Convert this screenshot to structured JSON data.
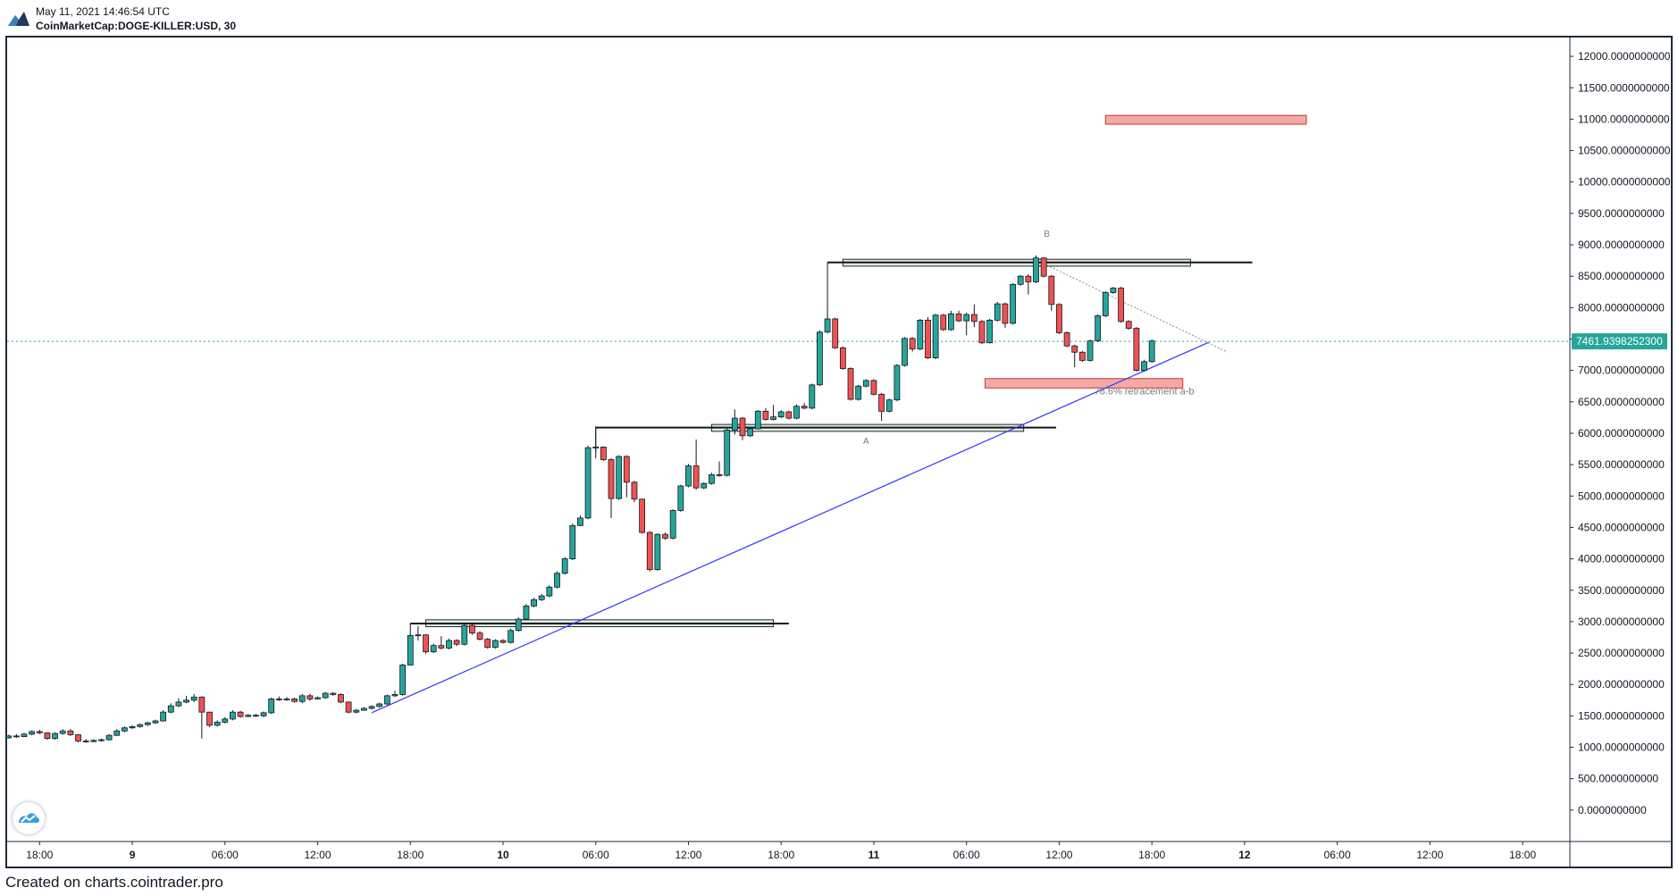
{
  "header": {
    "datetime": "May 11, 2021 14:46:54 UTC",
    "symbol": "CoinMarketCap:DOGE-KILLER:USD, 30"
  },
  "footer": {
    "text": "Created on charts.cointrader.pro"
  },
  "colors": {
    "up": "#26a69a",
    "down": "#ef5350",
    "trendline": "#3333ff",
    "zone_green": "#dfe9d6",
    "zone_red": "#f4a9a8",
    "price_label_bg": "#26a69a",
    "axis_text": "#131722"
  },
  "icons": {
    "logo": "cointrader-logo-icon",
    "watermark": "cointrader-watermark-icon"
  },
  "chart_data": {
    "type": "candlestick",
    "price_axis": {
      "ticks": [
        "12000.0000000000",
        "11500.0000000000",
        "11000.0000000000",
        "10500.0000000000",
        "10000.0000000000",
        "9500.0000000000",
        "9000.0000000000",
        "8500.0000000000",
        "8000.0000000000",
        "7500.0000000000",
        "7000.0000000000",
        "6500.0000000000",
        "6000.0000000000",
        "5500.0000000000",
        "5000.0000000000",
        "4500.0000000000",
        "4000.0000000000",
        "3500.0000000000",
        "3000.0000000000",
        "2500.0000000000",
        "2000.0000000000",
        "1500.0000000000",
        "1000.0000000000",
        "500.0000000000",
        "0.0000000000"
      ],
      "range": [
        -500,
        12300
      ]
    },
    "time_axis": {
      "ticks": [
        "18:00",
        "9",
        "06:00",
        "12:00",
        "18:00",
        "10",
        "06:00",
        "12:00",
        "18:00",
        "11",
        "06:00",
        "12:00",
        "18:00",
        "12",
        "06:00",
        "12:00",
        "18:00"
      ],
      "ticks_hours": [
        18,
        24,
        30,
        36,
        42,
        48,
        54,
        60,
        66,
        72,
        78,
        84,
        90,
        96,
        102,
        108,
        114
      ],
      "bold_ticks": [
        "9",
        "10",
        "11",
        "12"
      ],
      "range_hours": [
        15.9,
        117.0
      ],
      "origin_note": "hours since May 8, 00:00 UTC"
    },
    "last_price": {
      "value": 7461.93982523,
      "label": "7461.9398252300"
    },
    "candles": [
      [
        16.0,
        1150,
        1180,
        1200,
        1140
      ],
      [
        16.5,
        1180,
        1170,
        1210,
        1150
      ],
      [
        17.0,
        1170,
        1210,
        1230,
        1160
      ],
      [
        17.5,
        1210,
        1250,
        1270,
        1190
      ],
      [
        18.0,
        1250,
        1230,
        1280,
        1210
      ],
      [
        18.5,
        1230,
        1140,
        1240,
        1120
      ],
      [
        19.0,
        1140,
        1220,
        1240,
        1120
      ],
      [
        19.5,
        1220,
        1260,
        1290,
        1200
      ],
      [
        20.0,
        1260,
        1200,
        1290,
        1180
      ],
      [
        20.5,
        1200,
        1100,
        1210,
        1080
      ],
      [
        21.0,
        1100,
        1090,
        1130,
        1070
      ],
      [
        21.5,
        1090,
        1110,
        1130,
        1080
      ],
      [
        22.0,
        1110,
        1120,
        1140,
        1090
      ],
      [
        22.5,
        1120,
        1190,
        1210,
        1110
      ],
      [
        23.0,
        1190,
        1260,
        1290,
        1180
      ],
      [
        23.5,
        1260,
        1310,
        1330,
        1240
      ],
      [
        24.0,
        1310,
        1330,
        1350,
        1290
      ],
      [
        24.5,
        1330,
        1360,
        1380,
        1310
      ],
      [
        25.0,
        1360,
        1390,
        1410,
        1340
      ],
      [
        25.5,
        1390,
        1420,
        1440,
        1370
      ],
      [
        26.0,
        1420,
        1560,
        1590,
        1410
      ],
      [
        26.5,
        1560,
        1660,
        1700,
        1540
      ],
      [
        27.0,
        1660,
        1720,
        1780,
        1640
      ],
      [
        27.5,
        1720,
        1750,
        1820,
        1700
      ],
      [
        28.0,
        1750,
        1800,
        1850,
        1720
      ],
      [
        28.5,
        1800,
        1560,
        1810,
        1140
      ],
      [
        29.0,
        1560,
        1350,
        1560,
        1320
      ],
      [
        29.5,
        1350,
        1400,
        1430,
        1330
      ],
      [
        30.0,
        1400,
        1450,
        1480,
        1380
      ],
      [
        30.5,
        1450,
        1560,
        1590,
        1430
      ],
      [
        31.0,
        1560,
        1490,
        1580,
        1470
      ],
      [
        31.5,
        1490,
        1510,
        1530,
        1480
      ],
      [
        32.0,
        1510,
        1500,
        1530,
        1480
      ],
      [
        32.5,
        1500,
        1550,
        1570,
        1480
      ],
      [
        33.0,
        1550,
        1770,
        1790,
        1530
      ],
      [
        33.5,
        1770,
        1760,
        1810,
        1740
      ],
      [
        34.0,
        1760,
        1770,
        1800,
        1740
      ],
      [
        34.5,
        1770,
        1730,
        1790,
        1710
      ],
      [
        35.0,
        1730,
        1820,
        1850,
        1700
      ],
      [
        35.5,
        1820,
        1770,
        1850,
        1740
      ],
      [
        36.0,
        1770,
        1790,
        1810,
        1760
      ],
      [
        36.5,
        1790,
        1860,
        1880,
        1770
      ],
      [
        37.0,
        1860,
        1840,
        1880,
        1820
      ],
      [
        37.5,
        1840,
        1720,
        1860,
        1700
      ],
      [
        38.0,
        1720,
        1560,
        1730,
        1540
      ],
      [
        38.5,
        1560,
        1590,
        1610,
        1540
      ],
      [
        39.0,
        1590,
        1620,
        1640,
        1580
      ],
      [
        39.5,
        1620,
        1650,
        1670,
        1600
      ],
      [
        40.0,
        1650,
        1690,
        1710,
        1630
      ],
      [
        40.5,
        1690,
        1820,
        1840,
        1670
      ],
      [
        41.0,
        1820,
        1840,
        1900,
        1800
      ],
      [
        41.5,
        1840,
        2310,
        2330,
        1820
      ],
      [
        42.0,
        2310,
        2780,
        2810,
        2300
      ],
      [
        42.5,
        2780,
        2790,
        2930,
        2700
      ],
      [
        43.0,
        2790,
        2520,
        2800,
        2490
      ],
      [
        43.5,
        2520,
        2620,
        2650,
        2500
      ],
      [
        44.0,
        2620,
        2580,
        2770,
        2560
      ],
      [
        44.5,
        2580,
        2700,
        2730,
        2560
      ],
      [
        45.0,
        2700,
        2640,
        2720,
        2610
      ],
      [
        45.5,
        2640,
        2940,
        2970,
        2620
      ],
      [
        46.0,
        2940,
        2820,
        2970,
        2790
      ],
      [
        46.5,
        2820,
        2720,
        2850,
        2700
      ],
      [
        47.0,
        2720,
        2590,
        2740,
        2570
      ],
      [
        47.5,
        2590,
        2700,
        2720,
        2570
      ],
      [
        48.0,
        2700,
        2670,
        2720,
        2650
      ],
      [
        48.5,
        2670,
        2860,
        2890,
        2650
      ],
      [
        49.0,
        2860,
        3040,
        3070,
        2840
      ],
      [
        49.5,
        3040,
        3250,
        3280,
        3020
      ],
      [
        50.0,
        3250,
        3350,
        3380,
        3230
      ],
      [
        50.5,
        3350,
        3410,
        3440,
        3330
      ],
      [
        51.0,
        3410,
        3550,
        3580,
        3390
      ],
      [
        51.5,
        3550,
        3770,
        3800,
        3530
      ],
      [
        52.0,
        3770,
        4000,
        4030,
        3750
      ],
      [
        52.5,
        4000,
        4530,
        4560,
        3980
      ],
      [
        53.0,
        4530,
        4650,
        4690,
        4520
      ],
      [
        53.5,
        4650,
        5770,
        5800,
        4630
      ],
      [
        54.0,
        5770,
        5780,
        6110,
        5600
      ],
      [
        54.5,
        5780,
        5580,
        5790,
        5560
      ],
      [
        55.0,
        5580,
        4960,
        5600,
        4650
      ],
      [
        55.5,
        4960,
        5630,
        5650,
        4940
      ],
      [
        56.0,
        5630,
        5220,
        5650,
        4980
      ],
      [
        56.5,
        5220,
        4950,
        5240,
        4900
      ],
      [
        57.0,
        4950,
        4420,
        4960,
        4400
      ],
      [
        57.5,
        4420,
        3830,
        4440,
        3800
      ],
      [
        58.0,
        3830,
        4390,
        4410,
        3810
      ],
      [
        58.5,
        4390,
        4330,
        4420,
        4300
      ],
      [
        59.0,
        4330,
        4770,
        4790,
        4310
      ],
      [
        59.5,
        4770,
        5160,
        5180,
        4750
      ],
      [
        60.0,
        5160,
        5480,
        5510,
        5140
      ],
      [
        60.5,
        5480,
        5130,
        5900,
        5100
      ],
      [
        61.0,
        5130,
        5200,
        5220,
        5110
      ],
      [
        61.5,
        5200,
        5340,
        5370,
        5180
      ],
      [
        62.0,
        5340,
        5330,
        5550,
        5310
      ],
      [
        62.5,
        5330,
        6050,
        6080,
        5310
      ],
      [
        63.0,
        6050,
        6240,
        6380,
        5980
      ],
      [
        63.5,
        6240,
        5960,
        6260,
        5890
      ],
      [
        64.0,
        5960,
        6070,
        6090,
        5940
      ],
      [
        64.5,
        6070,
        6350,
        6370,
        6060
      ],
      [
        65.0,
        6350,
        6220,
        6400,
        6200
      ],
      [
        65.5,
        6220,
        6260,
        6450,
        6200
      ],
      [
        66.0,
        6260,
        6340,
        6370,
        6240
      ],
      [
        66.5,
        6340,
        6240,
        6360,
        6220
      ],
      [
        67.0,
        6240,
        6430,
        6460,
        6220
      ],
      [
        67.5,
        6430,
        6400,
        6480,
        6380
      ],
      [
        68.0,
        6400,
        6770,
        6790,
        6380
      ],
      [
        68.5,
        6770,
        7610,
        7640,
        6750
      ],
      [
        69.0,
        7610,
        7820,
        7860,
        7590
      ],
      [
        69.5,
        7820,
        7360,
        7840,
        7340
      ],
      [
        70.0,
        7360,
        7030,
        7380,
        7010
      ],
      [
        70.5,
        7030,
        6540,
        7050,
        6520
      ],
      [
        71.0,
        6540,
        6750,
        6770,
        6520
      ],
      [
        71.5,
        6750,
        6840,
        6860,
        6730
      ],
      [
        72.0,
        6840,
        6620,
        6860,
        6600
      ],
      [
        72.5,
        6620,
        6350,
        6640,
        6200
      ],
      [
        73.0,
        6350,
        6530,
        6550,
        6330
      ],
      [
        73.5,
        6530,
        7080,
        7100,
        6510
      ],
      [
        74.0,
        7080,
        7510,
        7530,
        7060
      ],
      [
        74.5,
        7510,
        7340,
        7530,
        7300
      ],
      [
        75.0,
        7340,
        7800,
        7820,
        7320
      ],
      [
        75.5,
        7800,
        7200,
        7850,
        7180
      ],
      [
        76.0,
        7200,
        7880,
        7900,
        7180
      ],
      [
        76.5,
        7880,
        7650,
        7900,
        7630
      ],
      [
        77.0,
        7650,
        7900,
        7950,
        7630
      ],
      [
        77.5,
        7900,
        7790,
        7950,
        7770
      ],
      [
        78.0,
        7790,
        7890,
        7920,
        7560
      ],
      [
        78.5,
        7890,
        7780,
        8050,
        7690
      ],
      [
        79.0,
        7780,
        7440,
        7800,
        7420
      ],
      [
        79.5,
        7440,
        7800,
        7820,
        7430
      ],
      [
        80.0,
        7800,
        8060,
        8090,
        7780
      ],
      [
        80.5,
        8060,
        7750,
        8080,
        7680
      ],
      [
        81.0,
        7750,
        8370,
        8390,
        7730
      ],
      [
        81.5,
        8370,
        8500,
        8520,
        8350
      ],
      [
        82.0,
        8500,
        8410,
        8530,
        8210
      ],
      [
        82.5,
        8410,
        8790,
        8830,
        8390
      ],
      [
        83.0,
        8790,
        8500,
        8800,
        8480
      ],
      [
        83.5,
        8500,
        8050,
        8520,
        7950
      ],
      [
        84.0,
        8050,
        7600,
        8070,
        7580
      ],
      [
        84.5,
        7600,
        7390,
        7620,
        7370
      ],
      [
        85.0,
        7390,
        7290,
        7410,
        7050
      ],
      [
        85.5,
        7290,
        7160,
        7310,
        7140
      ],
      [
        86.0,
        7160,
        7470,
        7490,
        7140
      ],
      [
        86.5,
        7470,
        7870,
        7890,
        7450
      ],
      [
        87.0,
        7870,
        8240,
        8260,
        7850
      ],
      [
        87.5,
        8240,
        8310,
        8330,
        8220
      ],
      [
        88.0,
        8310,
        7780,
        8330,
        7760
      ],
      [
        88.5,
        7780,
        7670,
        7800,
        7650
      ],
      [
        89.0,
        7670,
        7000,
        7690,
        6980
      ],
      [
        89.5,
        7000,
        7140,
        7170,
        6980
      ],
      [
        90.0,
        7140,
        7470,
        7490,
        7120
      ]
    ],
    "annotations": {
      "labels": [
        {
          "text": "B",
          "x_hours": 83.2,
          "price": 9130
        },
        {
          "text": "A",
          "x_hours": 71.5,
          "price": 5830
        },
        {
          "text": "78.6% retracement a-b",
          "x_hours": 89.5,
          "price": 6620
        }
      ],
      "horizontal_lines": [
        {
          "from_hours": 42.0,
          "to_hours": 66.5,
          "price": 2970,
          "left_tick_to": 2800
        },
        {
          "from_hours": 54.0,
          "to_hours": 83.8,
          "price": 6090,
          "left_tick_to": 5700
        },
        {
          "from_hours": 69.0,
          "to_hours": 96.5,
          "price": 8720,
          "left_tick_to": 7850
        }
      ],
      "zones": [
        {
          "kind": "support-green",
          "from_hours": 43.0,
          "to_hours": 65.5,
          "price_top": 3030,
          "price_bottom": 2920
        },
        {
          "kind": "support-green",
          "from_hours": 61.5,
          "to_hours": 81.7,
          "price_top": 6140,
          "price_bottom": 6030
        },
        {
          "kind": "support-green",
          "from_hours": 70.0,
          "to_hours": 92.5,
          "price_top": 8770,
          "price_bottom": 8660
        },
        {
          "kind": "target-red",
          "from_hours": 87.0,
          "to_hours": 100.0,
          "price_top": 11060,
          "price_bottom": 10920
        },
        {
          "kind": "retracement-red",
          "from_hours": 79.2,
          "to_hours": 92.0,
          "price_top": 6870,
          "price_bottom": 6720
        }
      ],
      "trendline": {
        "from_hours": 39.5,
        "from_price": 1550,
        "to_hours": 93.7,
        "to_price": 7450
      },
      "dotted_line": {
        "from_hours": 83.0,
        "from_price": 8700,
        "to_hours": 94.9,
        "to_price": 7290
      }
    }
  }
}
